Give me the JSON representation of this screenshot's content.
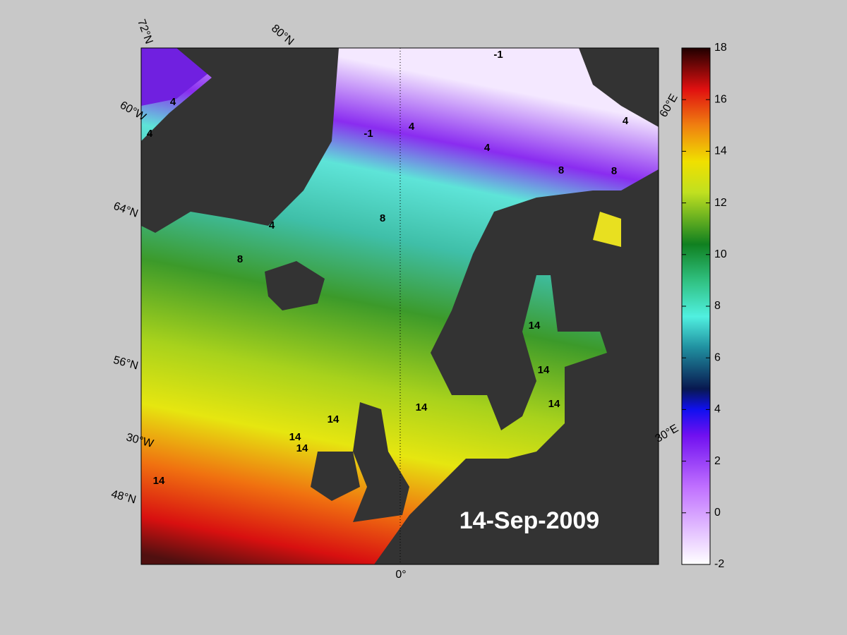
{
  "map": {
    "date": "14-Sep-2009",
    "graticule_labels": [
      "72°N",
      "80°N",
      "60°W",
      "64°N",
      "56°N",
      "30°W",
      "48°N",
      "0°",
      "60°E",
      "30°E"
    ],
    "contour_labels": [
      "-1",
      "-1",
      "4",
      "4",
      "4",
      "4",
      "4",
      "4",
      "8",
      "8",
      "8",
      "8",
      "14",
      "14",
      "14",
      "14",
      "14",
      "14",
      "14",
      "14"
    ]
  },
  "colorbar": {
    "lim": [
      -2,
      18
    ],
    "ticks": [
      -2,
      0,
      2,
      4,
      6,
      8,
      10,
      12,
      14,
      16,
      18
    ]
  }
}
